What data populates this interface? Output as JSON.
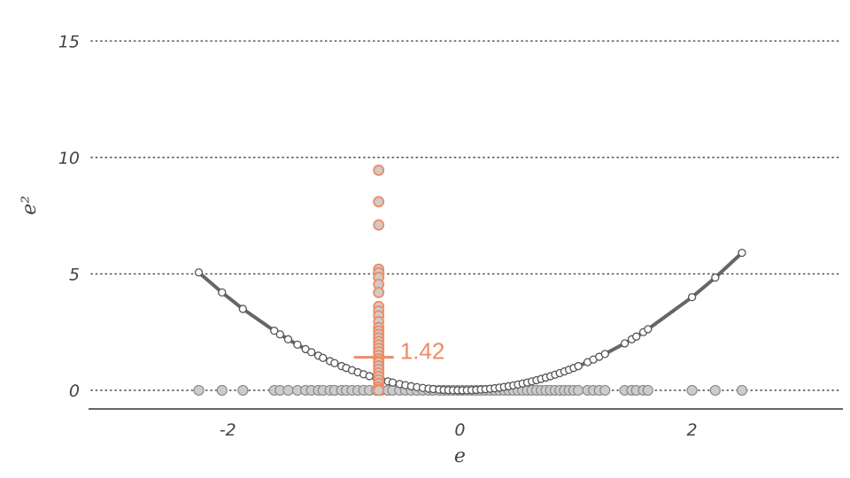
{
  "chart_data": {
    "type": "scatter",
    "title": "",
    "xlabel": "e",
    "ylabel": "e²",
    "xlim": [
      -3.2,
      3.3
    ],
    "ylim": [
      -0.8,
      16
    ],
    "x_ticks": [
      -2,
      0,
      2
    ],
    "x_tick_labels": [
      "-2",
      "0",
      "2"
    ],
    "y_ticks": [
      0,
      5,
      10,
      15
    ],
    "y_tick_labels": [
      "0",
      "5",
      "10",
      "15"
    ],
    "grid": "horizontal dotted lines",
    "colors": {
      "accent": "#f08a64",
      "curve": "#666666",
      "points_fill": "#cccccc",
      "text": "#444444"
    },
    "mean_e_squared": 1.42,
    "mean_label": "1.42",
    "projection_x": -0.7,
    "e_values": [
      -2.25,
      -2.05,
      -1.87,
      -1.6,
      -1.55,
      -1.48,
      -1.4,
      -1.33,
      -1.28,
      -1.22,
      -1.18,
      -1.12,
      -1.08,
      -1.02,
      -0.98,
      -0.93,
      -0.88,
      -0.83,
      -0.78,
      -0.72,
      -0.68,
      -0.62,
      -0.58,
      -0.52,
      -0.47,
      -0.42,
      -0.37,
      -0.32,
      -0.27,
      -0.23,
      -0.18,
      -0.14,
      -0.1,
      -0.06,
      -0.02,
      0.02,
      0.06,
      0.1,
      0.14,
      0.18,
      0.22,
      0.26,
      0.3,
      0.34,
      0.38,
      0.42,
      0.46,
      0.5,
      0.54,
      0.58,
      0.62,
      0.66,
      0.7,
      0.74,
      0.78,
      0.82,
      0.86,
      0.9,
      0.94,
      0.98,
      1.02,
      1.1,
      1.15,
      1.2,
      1.25,
      1.42,
      1.48,
      1.52,
      1.58,
      1.62,
      2.0,
      2.2,
      2.43
    ],
    "projected_e_squared": [
      9.45,
      8.1,
      7.1,
      5.2,
      5.05,
      4.85,
      4.55,
      4.2,
      3.6,
      3.4,
      3.2,
      2.95,
      2.7,
      2.55,
      2.4,
      2.25,
      2.1,
      1.95,
      1.8,
      1.65,
      1.5,
      1.35,
      1.2,
      1.05,
      0.9,
      0.75,
      0.6,
      0.45,
      0.3,
      0.15,
      0.05,
      0.0
    ]
  }
}
